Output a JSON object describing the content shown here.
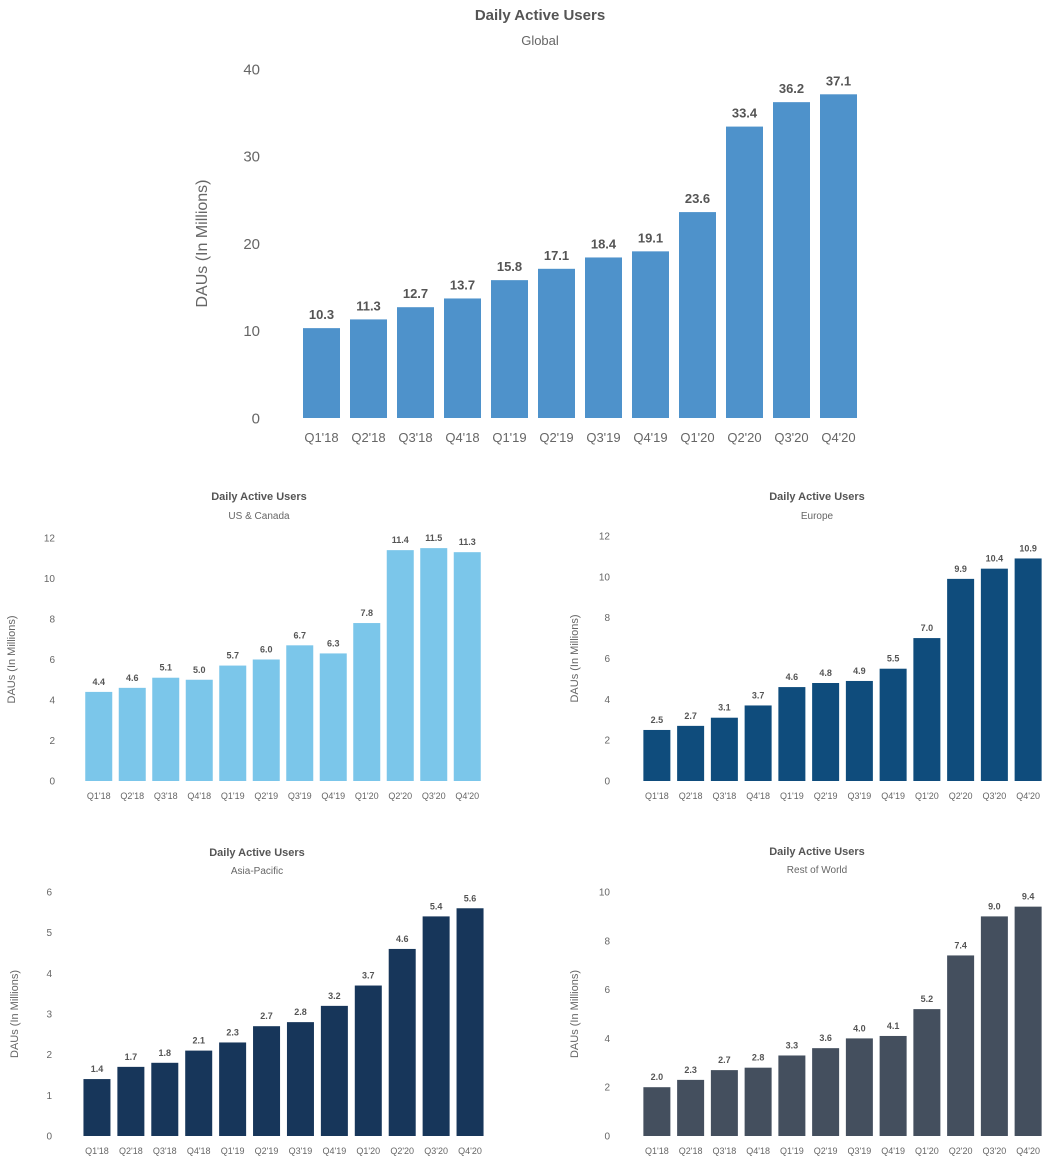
{
  "chart_data": [
    {
      "type": "bar",
      "title": "Daily Active Users",
      "subtitle": "Global",
      "ylabel": "DAUs (In Millions)",
      "xlabel": "",
      "categories": [
        "Q1'18",
        "Q2'18",
        "Q3'18",
        "Q4'18",
        "Q1'19",
        "Q2'19",
        "Q3'19",
        "Q4'19",
        "Q1'20",
        "Q2'20",
        "Q3'20",
        "Q4'20"
      ],
      "values": [
        10.3,
        11.3,
        12.7,
        13.7,
        15.8,
        17.1,
        18.4,
        19.1,
        23.6,
        33.4,
        36.2,
        37.1
      ],
      "value_labels": [
        "10.3",
        "11.3",
        "12.7",
        "13.7",
        "15.8",
        "17.1",
        "18.4",
        "19.1",
        "23.6",
        "33.4",
        "36.2",
        "37.1"
      ],
      "ylim": [
        0,
        40
      ],
      "yticks": [
        "0",
        "10",
        "20",
        "30",
        "40"
      ],
      "color": "#4e92cb",
      "grid": false
    },
    {
      "type": "bar",
      "title": "Daily Active Users",
      "subtitle": "US & Canada",
      "ylabel": "DAUs (In Millions)",
      "xlabel": "",
      "categories": [
        "Q1'18",
        "Q2'18",
        "Q3'18",
        "Q4'18",
        "Q1'19",
        "Q2'19",
        "Q3'19",
        "Q4'19",
        "Q1'20",
        "Q2'20",
        "Q3'20",
        "Q4'20"
      ],
      "values": [
        4.4,
        4.6,
        5.1,
        5.0,
        5.7,
        6.0,
        6.7,
        6.3,
        7.8,
        11.4,
        11.5,
        11.3
      ],
      "value_labels": [
        "4.4",
        "4.6",
        "5.1",
        "5.0",
        "5.7",
        "6.0",
        "6.7",
        "6.3",
        "7.8",
        "11.4",
        "11.5",
        "11.3"
      ],
      "ylim": [
        0,
        12
      ],
      "yticks": [
        "0",
        "2",
        "4",
        "6",
        "8",
        "10",
        "12"
      ],
      "color": "#7bc6ea",
      "grid": false
    },
    {
      "type": "bar",
      "title": "Daily Active Users",
      "subtitle": "Europe",
      "ylabel": "DAUs (In Millions)",
      "xlabel": "",
      "categories": [
        "Q1'18",
        "Q2'18",
        "Q3'18",
        "Q4'18",
        "Q1'19",
        "Q2'19",
        "Q3'19",
        "Q4'19",
        "Q1'20",
        "Q2'20",
        "Q3'20",
        "Q4'20"
      ],
      "values": [
        2.5,
        2.7,
        3.1,
        3.7,
        4.6,
        4.8,
        4.9,
        5.5,
        7.0,
        9.9,
        10.4,
        10.9
      ],
      "value_labels": [
        "2.5",
        "2.7",
        "3.1",
        "3.7",
        "4.6",
        "4.8",
        "4.9",
        "5.5",
        "7.0",
        "9.9",
        "10.4",
        "10.9"
      ],
      "ylim": [
        0,
        12
      ],
      "yticks": [
        "0",
        "2",
        "4",
        "6",
        "8",
        "10",
        "12"
      ],
      "color": "#0f4c7c",
      "grid": false
    },
    {
      "type": "bar",
      "title": "Daily Active Users",
      "subtitle": "Asia-Pacific",
      "ylabel": "DAUs (In Millions)",
      "xlabel": "",
      "categories": [
        "Q1'18",
        "Q2'18",
        "Q3'18",
        "Q4'18",
        "Q1'19",
        "Q2'19",
        "Q3'19",
        "Q4'19",
        "Q1'20",
        "Q2'20",
        "Q3'20",
        "Q4'20"
      ],
      "values": [
        1.4,
        1.7,
        1.8,
        2.1,
        2.3,
        2.7,
        2.8,
        3.2,
        3.7,
        4.6,
        5.4,
        5.6
      ],
      "value_labels": [
        "1.4",
        "1.7",
        "1.8",
        "2.1",
        "2.3",
        "2.7",
        "2.8",
        "3.2",
        "3.7",
        "4.6",
        "5.4",
        "5.6"
      ],
      "ylim": [
        0,
        6
      ],
      "yticks": [
        "0",
        "1",
        "2",
        "3",
        "4",
        "5",
        "6"
      ],
      "color": "#17365a",
      "grid": false
    },
    {
      "type": "bar",
      "title": "Daily Active Users",
      "subtitle": "Rest of World",
      "ylabel": "DAUs (In Millions)",
      "xlabel": "",
      "categories": [
        "Q1'18",
        "Q2'18",
        "Q3'18",
        "Q4'18",
        "Q1'19",
        "Q2'19",
        "Q3'19",
        "Q4'19",
        "Q1'20",
        "Q2'20",
        "Q3'20",
        "Q4'20"
      ],
      "values": [
        2.0,
        2.3,
        2.7,
        2.8,
        3.3,
        3.6,
        4.0,
        4.1,
        5.2,
        7.4,
        9.0,
        9.4
      ],
      "value_labels": [
        "2.0",
        "2.3",
        "2.7",
        "2.8",
        "3.3",
        "3.6",
        "4.0",
        "4.1",
        "5.2",
        "7.4",
        "9.0",
        "9.4"
      ],
      "ylim": [
        0,
        10
      ],
      "yticks": [
        "0",
        "2",
        "4",
        "6",
        "8",
        "10"
      ],
      "color": "#444f5e",
      "grid": false
    }
  ]
}
